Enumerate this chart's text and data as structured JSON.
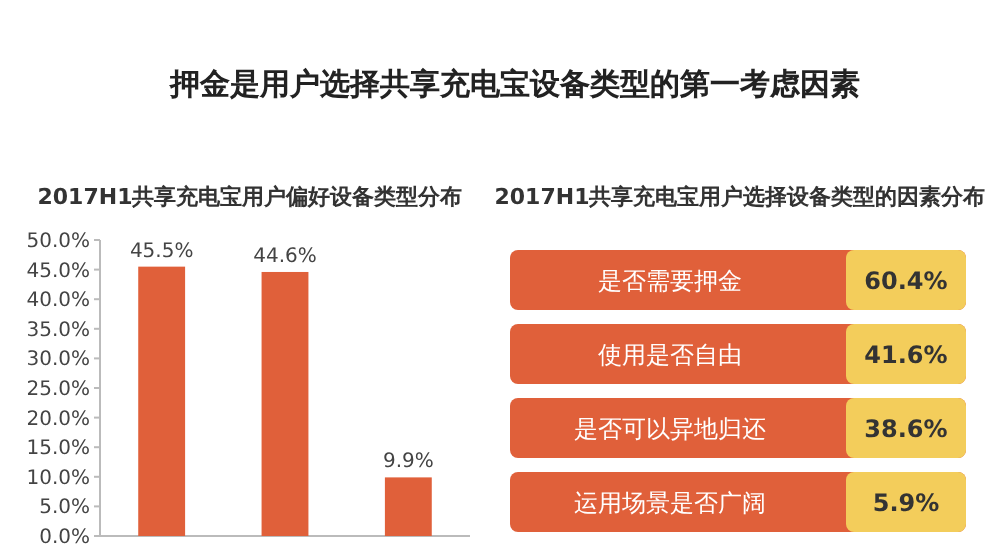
{
  "chart_data": [
    {
      "type": "bar",
      "title": "押金是用户选择共享充电宝设备类型的第一考虑因素",
      "subtitle": "2017H1共享充电宝用户偏好设备类型分布",
      "categories": [
        null,
        null,
        null
      ],
      "values": [
        45.5,
        44.6,
        9.9
      ],
      "value_labels": [
        "45.5%",
        "44.6%",
        "9.9%"
      ],
      "color": "#e0603a",
      "ylim": [
        0,
        50
      ],
      "yticks": [
        {
          "value": 0,
          "label": "0.0%"
        },
        {
          "value": 5,
          "label": "5.0%"
        },
        {
          "value": 10,
          "label": "10.0%"
        },
        {
          "value": 15,
          "label": "15.0%"
        },
        {
          "value": 20,
          "label": "20.0%"
        },
        {
          "value": 25,
          "label": "25.0%"
        },
        {
          "value": 30,
          "label": "30.0%"
        },
        {
          "value": 35,
          "label": "35.0%"
        },
        {
          "value": 40,
          "label": "40.0%"
        },
        {
          "value": 45,
          "label": "45.0%"
        },
        {
          "value": 50,
          "label": "50.0%"
        }
      ],
      "grid": false
    },
    {
      "type": "other",
      "title": "2017H1共享充电宝用户选择设备类型的因素分布",
      "categories": [
        "是否需要押金",
        "使用是否自由",
        "是否可以异地归还",
        "运用场景是否广阔"
      ],
      "value_labels": [
        "60.4%",
        "41.6%",
        "38.6%",
        "5.9%"
      ],
      "color": "#e0603a"
    }
  ]
}
